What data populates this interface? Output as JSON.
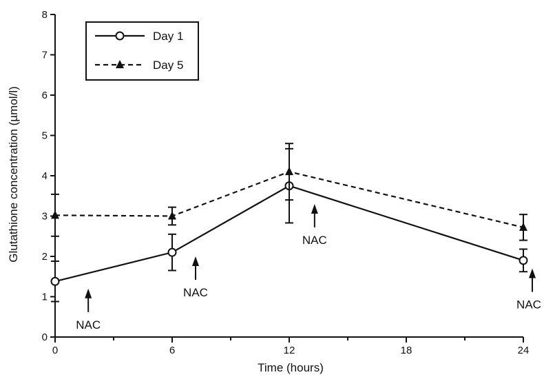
{
  "chart_data": {
    "type": "line",
    "xlabel": "Time (hours)",
    "ylabel": "Glutathione concentration (µmol/l)",
    "xlim": [
      0,
      24
    ],
    "ylim": [
      0,
      8
    ],
    "xticks": [
      0,
      6,
      12,
      18,
      24
    ],
    "xminor": [
      3,
      9,
      15,
      21
    ],
    "yticks": [
      0,
      1,
      2,
      3,
      4,
      5,
      6,
      7,
      8
    ],
    "grid": false,
    "legend_position": "top-left",
    "series": [
      {
        "name": "Day 1",
        "line_style": "solid",
        "marker": "open-circle",
        "color": "#111111",
        "x": [
          0,
          6,
          12,
          24
        ],
        "y": [
          1.38,
          2.1,
          3.75,
          1.9
        ],
        "err": [
          0.5,
          0.45,
          0.92,
          0.28
        ]
      },
      {
        "name": "Day 5",
        "line_style": "dashed",
        "marker": "filled-triangle",
        "color": "#111111",
        "x": [
          0,
          6,
          12,
          24
        ],
        "y": [
          3.02,
          3.0,
          4.1,
          2.72
        ],
        "err": [
          0.52,
          0.22,
          0.7,
          0.32
        ]
      }
    ],
    "annotations": [
      {
        "text": "NAC",
        "x": 1.7,
        "y": 1.2
      },
      {
        "text": "NAC",
        "x": 7.2,
        "y": 2.0
      },
      {
        "text": "NAC",
        "x": 13.3,
        "y": 3.3
      },
      {
        "text": "NAC",
        "x": 24.7,
        "y": 1.7
      }
    ]
  }
}
